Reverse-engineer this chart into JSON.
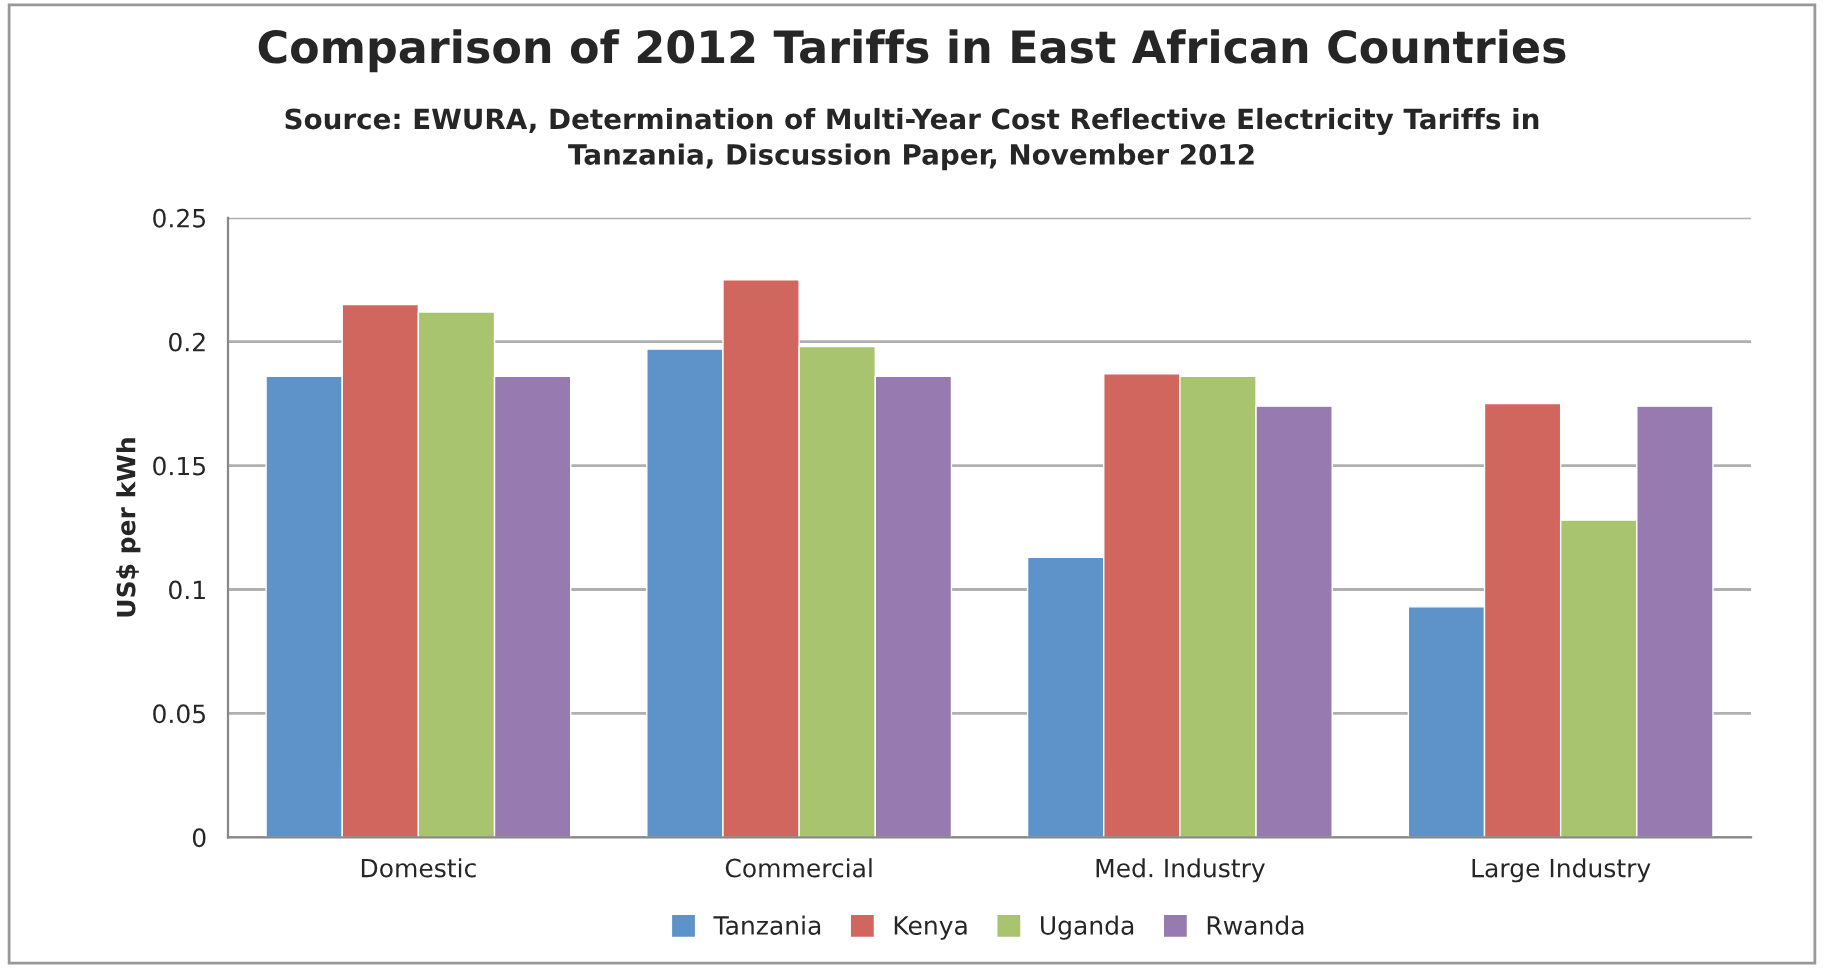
{
  "chart_data": {
    "type": "bar",
    "title": "Comparison of 2012 Tariffs in East African Countries",
    "subtitle": "Source: EWURA, Determination of Multi-Year Cost Reflective Electricity Tariffs in\nTanzania, Discussion Paper, November 2012",
    "ylabel": "US$ per kWh",
    "categories": [
      "Domestic",
      "Commercial",
      "Med. Industry",
      "Large Industry"
    ],
    "series": [
      {
        "name": "Tanzania",
        "color": "#5d93c8",
        "values": [
          0.186,
          0.197,
          0.113,
          0.093
        ]
      },
      {
        "name": "Kenya",
        "color": "#d1665f",
        "values": [
          0.215,
          0.225,
          0.187,
          0.175
        ]
      },
      {
        "name": "Uganda",
        "color": "#a8c46f",
        "values": [
          0.212,
          0.198,
          0.186,
          0.128
        ]
      },
      {
        "name": "Rwanda",
        "color": "#977bb0",
        "values": [
          0.186,
          0.186,
          0.174,
          0.174
        ]
      }
    ],
    "ylim": [
      0,
      0.25
    ],
    "yticks": [
      0,
      0.05,
      0.1,
      0.15,
      0.2,
      0.25
    ],
    "grid": "y",
    "legend": "bottom"
  }
}
